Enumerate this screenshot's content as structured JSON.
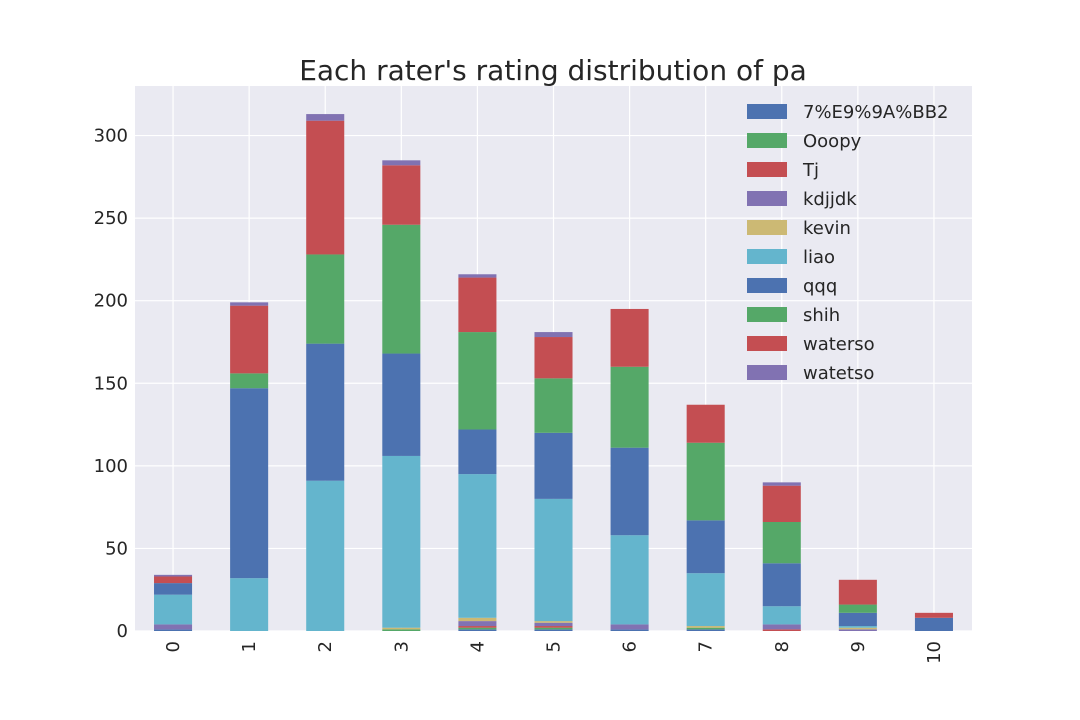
{
  "chart_data": {
    "type": "bar",
    "stacked": true,
    "title": "Each rater's rating distribution of pa",
    "xlabel": "",
    "ylabel": "",
    "categories": [
      "0",
      "1",
      "2",
      "3",
      "4",
      "5",
      "6",
      "7",
      "8",
      "9",
      "10"
    ],
    "ylim": [
      0,
      330
    ],
    "yticks": [
      0,
      50,
      100,
      150,
      200,
      250,
      300
    ],
    "grid": true,
    "legend_position": "top-right",
    "series": [
      {
        "name": "7%E9%9A%BB2",
        "color": "#4C72B0",
        "values": [
          1,
          0,
          0,
          0,
          1,
          1,
          1,
          1,
          0,
          0,
          0
        ]
      },
      {
        "name": "Ooopy",
        "color": "#55A868",
        "values": [
          0,
          0,
          0,
          1,
          1,
          1,
          0,
          1,
          0,
          0,
          0
        ]
      },
      {
        "name": "Tj",
        "color": "#C44E52",
        "values": [
          0,
          0,
          0,
          0,
          1,
          1,
          0,
          0,
          1,
          0,
          0
        ]
      },
      {
        "name": "kdjjdk",
        "color": "#8172B2",
        "values": [
          3,
          0,
          0,
          0,
          3,
          2,
          3,
          0,
          3,
          1,
          0
        ]
      },
      {
        "name": "kevin",
        "color": "#CCB974",
        "values": [
          0,
          0,
          0,
          1,
          2,
          1,
          0,
          1,
          0,
          1,
          0
        ]
      },
      {
        "name": "liao",
        "color": "#64B5CD",
        "values": [
          18,
          32,
          91,
          104,
          87,
          74,
          54,
          32,
          11,
          1,
          0
        ]
      },
      {
        "name": "qqq",
        "color": "#4C72B0",
        "values": [
          7,
          115,
          83,
          62,
          27,
          40,
          53,
          32,
          26,
          8,
          8
        ]
      },
      {
        "name": "shih",
        "color": "#55A868",
        "values": [
          0,
          9,
          54,
          78,
          59,
          33,
          49,
          47,
          25,
          5,
          0
        ]
      },
      {
        "name": "waterso",
        "color": "#C44E52",
        "values": [
          4,
          41,
          81,
          36,
          33,
          25,
          35,
          23,
          22,
          15,
          3
        ]
      },
      {
        "name": "watetso",
        "color": "#8172B2",
        "values": [
          1,
          2,
          4,
          3,
          2,
          3,
          0,
          0,
          2,
          0,
          0
        ]
      }
    ]
  }
}
